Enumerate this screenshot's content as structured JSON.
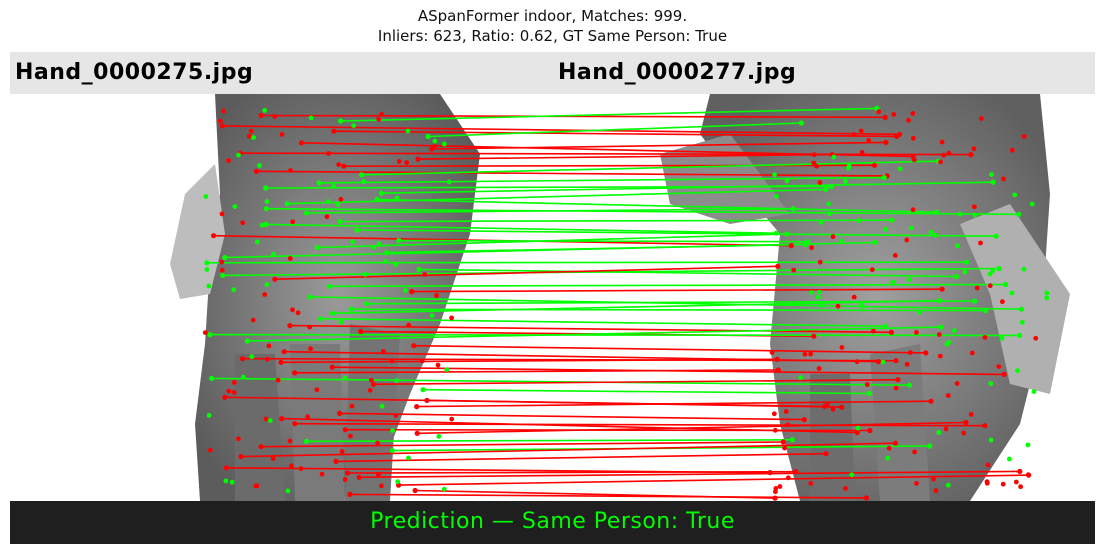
{
  "figure": {
    "title_line1": "ASpanFormer indoor, Matches: 999.",
    "title_line2": "Inliers: 623, Ratio: 0.62, GT Same Person: True"
  },
  "images": {
    "left_filename": "Hand_0000275.jpg",
    "right_filename": "Hand_0000277.jpg"
  },
  "prediction": {
    "text": "Prediction — Same Person: True"
  },
  "colors": {
    "inlier": "#00ff00",
    "outlier": "#ff0000",
    "header_bg": "#e6e6e6",
    "footer_bg": "#1f1f1f",
    "prediction_text": "#00ff00"
  }
}
